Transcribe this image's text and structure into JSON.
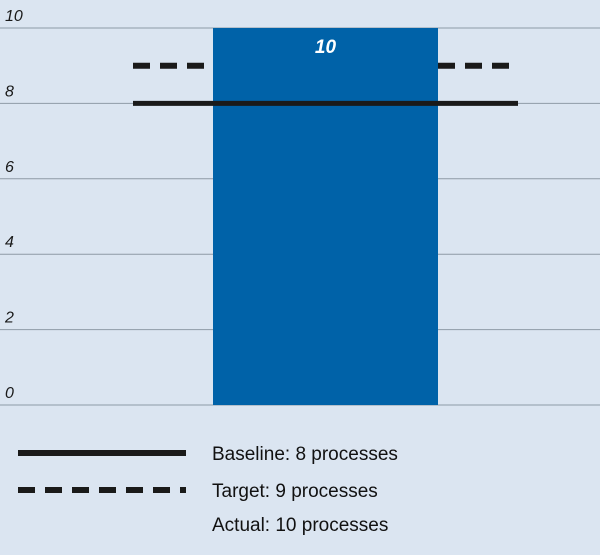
{
  "chart_data": {
    "type": "bar",
    "categories": [
      ""
    ],
    "series": [
      {
        "values": [
          10
        ]
      }
    ],
    "ylim": [
      0,
      10
    ],
    "yticks": [
      0,
      2,
      4,
      6,
      8,
      10
    ],
    "grid": true,
    "bar_labels": [
      "10"
    ],
    "reference_lines": [
      {
        "value": 8,
        "style": "solid"
      },
      {
        "value": 9,
        "style": "dashed"
      }
    ],
    "legend": [
      {
        "label": "Baseline: 8 processes",
        "symbol": "solid"
      },
      {
        "label": "Target: 9 processes",
        "symbol": "dashed"
      },
      {
        "label": "Actual: 10 processes",
        "symbol": "none"
      }
    ],
    "legend_position": "bottom-left"
  },
  "colors": {
    "background": "#dbe5f1",
    "bar": "#0062a8",
    "grid": "#8e9aa6",
    "line": "#1a1a1a"
  }
}
